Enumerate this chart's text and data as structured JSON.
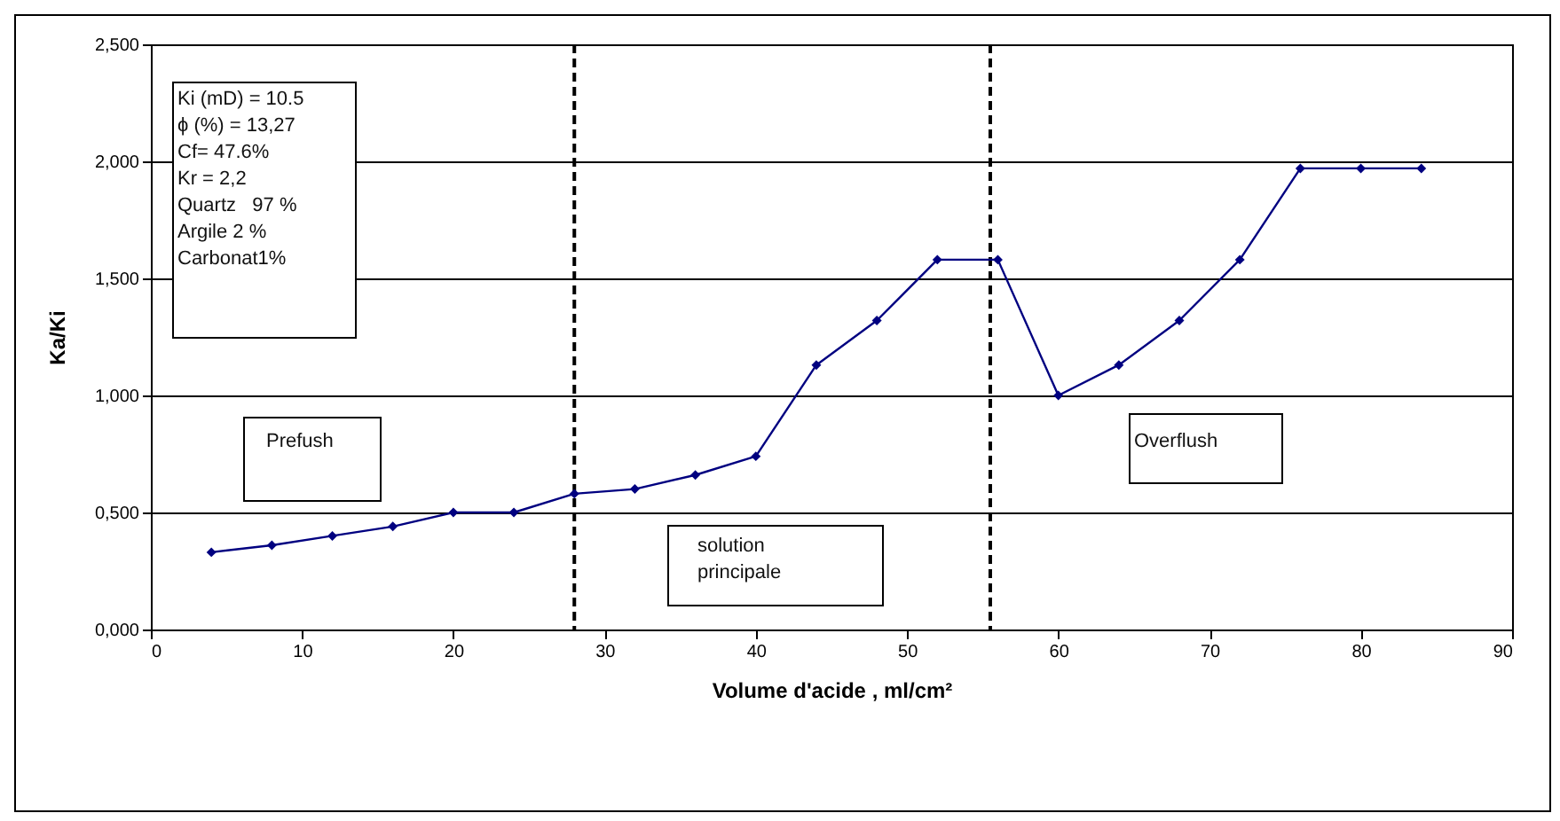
{
  "chart_data": {
    "type": "line",
    "xlabel": "Volume d'acide , ml/cm²",
    "ylabel": "Ka/Ki",
    "x": [
      4,
      8,
      12,
      16,
      20,
      24,
      28,
      32,
      36,
      40,
      44,
      48,
      52,
      56,
      60,
      64,
      68,
      72,
      76,
      80,
      84
    ],
    "series": [
      {
        "color": "#000080",
        "values": [
          0.33,
          0.36,
          0.4,
          0.44,
          0.5,
          0.5,
          0.58,
          0.6,
          0.66,
          0.74,
          1.13,
          1.32,
          1.58,
          1.58,
          1.0,
          1.13,
          1.32,
          1.58,
          1.97,
          1.97,
          1.97
        ]
      }
    ],
    "xlim": [
      0,
      90
    ],
    "xticks": [
      0,
      10,
      20,
      30,
      40,
      50,
      60,
      70,
      80,
      90
    ],
    "ylim": [
      0,
      2.5
    ],
    "yticks": [
      {
        "value": 0,
        "label": "0,000"
      },
      {
        "value": 0.5,
        "label": "0,500"
      },
      {
        "value": 1,
        "label": "1,000"
      },
      {
        "value": 1.5,
        "label": "1,500"
      },
      {
        "value": 2,
        "label": "2,000"
      },
      {
        "value": 2.5,
        "label": "2,500"
      }
    ],
    "grid": "y",
    "marker": "diamond",
    "line_style": "solid",
    "ref_lines": [
      {
        "axis": "x",
        "value": 28,
        "color": "#000000",
        "line_style": "dashed"
      },
      {
        "axis": "x",
        "value": 55.5,
        "color": "#000000",
        "line_style": "dashed"
      }
    ],
    "annotations": [
      "Ki (mD) = 10.5\nϕ (%) = 13,27\nCf= 47.6%\nKr = 2,2\nQuartz   97 %\nArgile 2 %\nCarbonat1%",
      "Prefush",
      "solution\nprincipale",
      "Overflush"
    ]
  }
}
